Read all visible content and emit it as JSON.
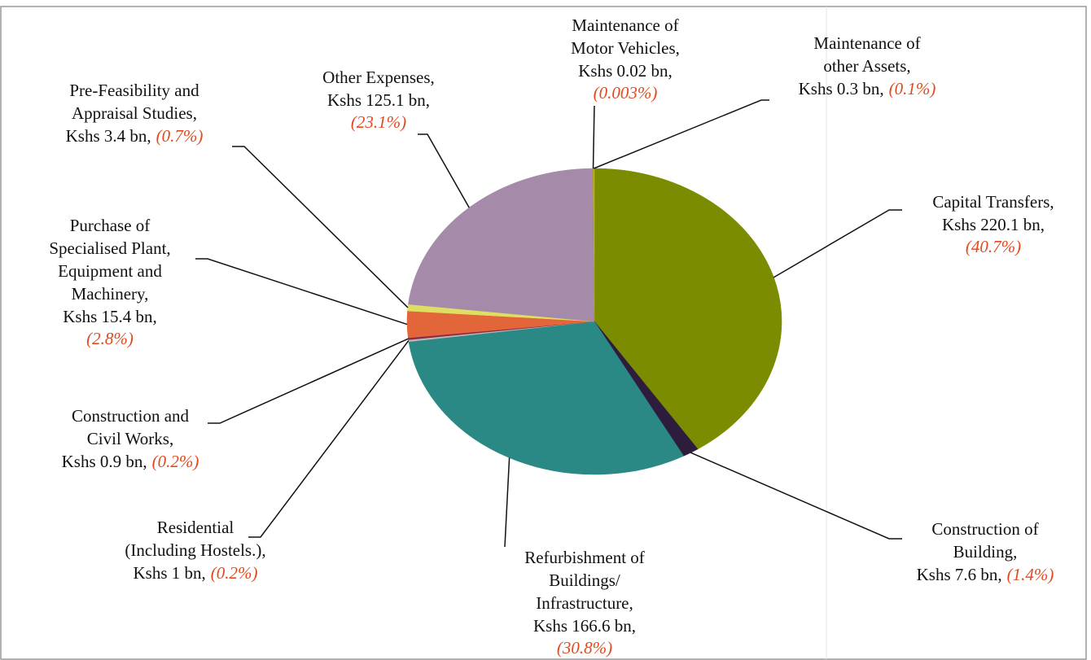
{
  "chart_data": {
    "type": "pie",
    "labels": [
      [
        "Capital Transfers,"
      ],
      [
        "Construction of",
        "Building,"
      ],
      [
        "Refurbishment of",
        "Buildings/",
        "Infrastructure,"
      ],
      [
        "Residential",
        "(Including Hostels.),"
      ],
      [
        "Construction and",
        "Civil Works,"
      ],
      [
        "Purchase of",
        "Specialised Plant,",
        "Equipment and",
        "Machinery,"
      ],
      [
        "Pre-Feasibility and",
        "Appraisal Studies,"
      ],
      [
        "Other Expenses,"
      ],
      [
        "Maintenance of",
        "Motor Vehicles,"
      ],
      [
        "Maintenance of",
        "other Assets,"
      ]
    ],
    "amounts": [
      "Kshs 220.1 bn,",
      "Kshs 7.6 bn,",
      "Kshs 166.6 bn,",
      "Kshs 1 bn,",
      "Kshs 0.9 bn,",
      "Kshs 15.4 bn,",
      "Kshs 3.4 bn,",
      "Kshs 125.1 bn,",
      "Kshs 0.02 bn,",
      "Kshs 0.3 bn,"
    ],
    "values": [
      40.7,
      1.4,
      30.8,
      0.2,
      0.2,
      2.8,
      0.7,
      23.1,
      0.003,
      0.1
    ],
    "value_labels": [
      "(40.7%)",
      "(1.4%)",
      "(30.8%)",
      "(0.2%)",
      "(0.2%)",
      "(2.8%)",
      "(0.7%)",
      "(23.1%)",
      "(0.003%)",
      "(0.1%)"
    ],
    "colors": [
      "#7b8c00",
      "#2e1c3c",
      "#2b8985",
      "#b8b8b8",
      "#8c2a44",
      "#e2663a",
      "#dede62",
      "#a68aaa",
      "#404040",
      "#c8b400"
    ]
  }
}
